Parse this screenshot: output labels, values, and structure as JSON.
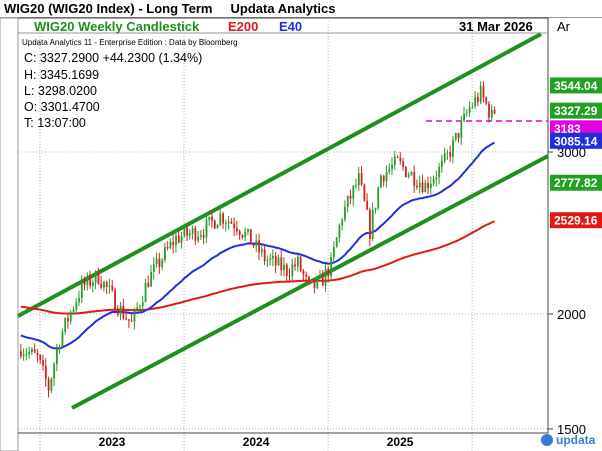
{
  "window": {
    "title": "WIG20 (WIG20 Index) - Long Term",
    "brand": "Updata Analytics"
  },
  "chart_header": {
    "name": "WIG20 Weekly Candlestick",
    "indicator1": "E200",
    "indicator2": "E40",
    "date": "31 Mar 2026",
    "axis_tag": "Ar",
    "subtitle": "Updata Analytics 11 - Enterprise Edition : Data by Bloomberg"
  },
  "quote": {
    "close": "C: 3327.2900  +44.2300 (1.34%)",
    "high": "H: 3345.1699",
    "low": "L: 3298.0200",
    "open": "O: 3301.4700",
    "time": "T: 13:07:00"
  },
  "watermark": "updata",
  "colors": {
    "up": "#2a9c2a",
    "down": "#d42020",
    "e40": "#1f2ee0",
    "e200": "#e01818",
    "channel": "#1f8f1f",
    "level": "#e000e0"
  },
  "chart_data": {
    "type": "candlestick",
    "y_axis": {
      "ticks": [
        1500,
        2000,
        3000
      ],
      "min": 1400,
      "max": 3800
    },
    "x_axis": {
      "labels": [
        "2023",
        "2024",
        "2025"
      ]
    },
    "price_tags": [
      {
        "label": "3544.04",
        "value": 3544.04,
        "color": "#22a022"
      },
      {
        "label": "3327.29",
        "value": 3327.29,
        "color": "#22a022"
      },
      {
        "label": "3183",
        "value": 3183,
        "color": "#e000e0"
      },
      {
        "label": "3085.14",
        "value": 3085.14,
        "color": "#1f2ee0"
      },
      {
        "label": "2777.82",
        "value": 2777.82,
        "color": "#22a022"
      },
      {
        "label": "2529.16",
        "value": 2529.16,
        "color": "#e01818"
      }
    ],
    "series": [
      {
        "name": "WIG20 Weekly Candlestick",
        "kind": "candles"
      },
      {
        "name": "E40",
        "kind": "ema",
        "period": 40
      },
      {
        "name": "E200",
        "kind": "ema",
        "period": 200
      }
    ],
    "annotations": [
      {
        "kind": "upper channel line"
      },
      {
        "kind": "lower channel line"
      },
      {
        "kind": "horizontal level",
        "value": 3183
      }
    ]
  }
}
